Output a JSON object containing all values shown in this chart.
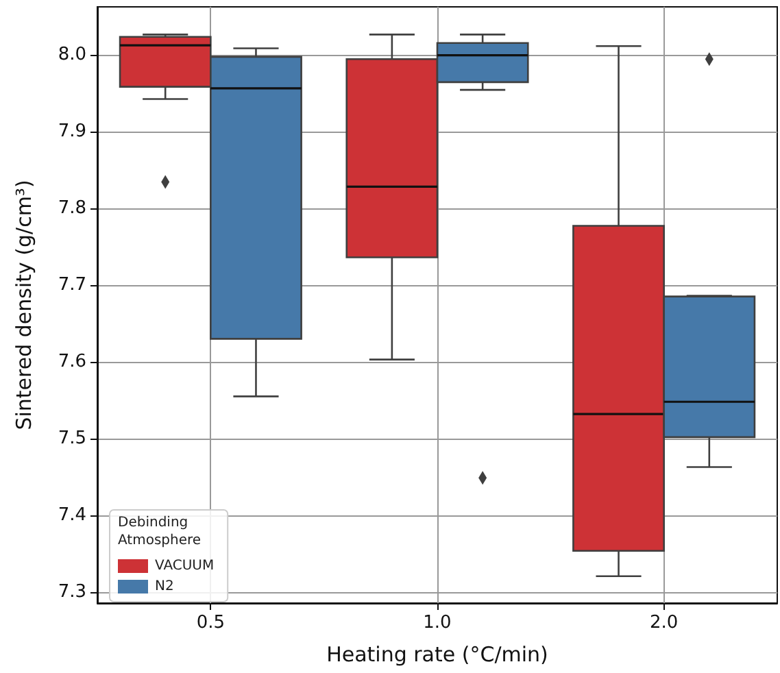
{
  "chart_data": {
    "type": "box",
    "xlabel": "Heating rate (°C/min)",
    "ylabel": "Sintered density (g/cm³)",
    "legend_title": "Debinding\nAtmosphere",
    "categories": [
      "0.5",
      "1.0",
      "2.0"
    ],
    "ylim": [
      7.286,
      8.062
    ],
    "yticks": [
      7.3,
      7.4,
      7.5,
      7.6,
      7.7,
      7.8,
      7.9,
      {
        "value": 8,
        "label": "8.0"
      }
    ],
    "grid": true,
    "legend": "bottom left",
    "series": [
      {
        "name": "VACUUM",
        "color": "#cd3236",
        "boxes": [
          {
            "low": 7.942,
            "q1": 7.958,
            "median": 8.012,
            "q3": 8.023,
            "high": 8.026,
            "outliers": [
              7.834
            ]
          },
          {
            "low": 7.603,
            "q1": 7.736,
            "median": 7.828,
            "q3": 7.994,
            "high": 8.026
          },
          {
            "low": 7.321,
            "q1": 7.354,
            "median": 7.532,
            "q3": 7.777,
            "high": 8.011
          }
        ]
      },
      {
        "name": "N2",
        "color": "#4679a9",
        "boxes": [
          {
            "low": 7.555,
            "q1": 7.63,
            "median": 7.956,
            "q3": 7.997,
            "high": 8.008
          },
          {
            "low": 7.954,
            "q1": 7.964,
            "median": 7.999,
            "q3": 8.015,
            "high": 8.026,
            "outliers": [
              7.449
            ]
          },
          {
            "low": 7.463,
            "q1": 7.502,
            "median": 7.548,
            "q3": 7.685,
            "high": 7.686,
            "outliers": [
              7.994
            ]
          }
        ]
      }
    ]
  }
}
